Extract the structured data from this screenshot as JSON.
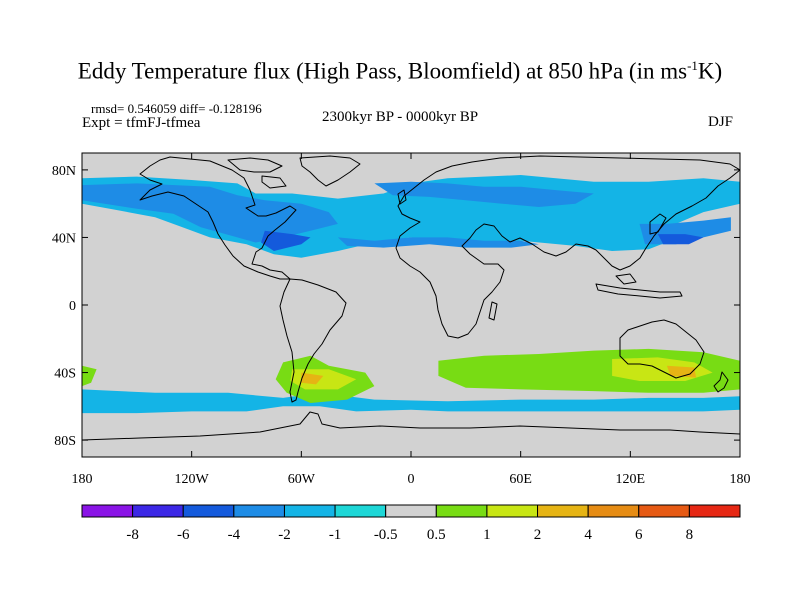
{
  "title": {
    "prefix": "Eddy Temperature flux (High Pass, Bloomfield) at 850 hPa (in ms",
    "superscript": "-1",
    "suffix": "K)"
  },
  "stats": "rmsd= 0.546059 diff= -0.128196",
  "experiment": "Expt = tfmFJ-tfmea",
  "period": "2300kyr BP - 0000kyr BP",
  "season": "DJF",
  "map": {
    "projection": "cylindrical-equidistant",
    "lon_range": [
      -180,
      180
    ],
    "lat_range": [
      -90,
      90
    ],
    "land_color": "#d2d2d2",
    "coastline_color": "#000000",
    "lat_ticks": [
      {
        "value": 80,
        "label": "80N"
      },
      {
        "value": 40,
        "label": "40N"
      },
      {
        "value": 0,
        "label": "0"
      },
      {
        "value": -40,
        "label": "40S"
      },
      {
        "value": -80,
        "label": "80S"
      }
    ],
    "lon_ticks": [
      {
        "value": -180,
        "label": "180"
      },
      {
        "value": -120,
        "label": "120W"
      },
      {
        "value": -60,
        "label": "60W"
      },
      {
        "value": 0,
        "label": "0"
      },
      {
        "value": 60,
        "label": "60E"
      },
      {
        "value": 120,
        "label": "120E"
      },
      {
        "value": 180,
        "label": "180"
      }
    ],
    "anomaly_regions": [
      {
        "level": -1,
        "points": [
          [
            -180,
            75
          ],
          [
            -150,
            76
          ],
          [
            -120,
            74
          ],
          [
            -95,
            72
          ],
          [
            -85,
            66
          ],
          [
            -65,
            66
          ],
          [
            -40,
            63
          ],
          [
            -15,
            66
          ],
          [
            0,
            72
          ],
          [
            20,
            75
          ],
          [
            60,
            77
          ],
          [
            100,
            73
          ],
          [
            130,
            73
          ],
          [
            160,
            75
          ],
          [
            180,
            73
          ],
          [
            180,
            60
          ],
          [
            160,
            55
          ],
          [
            145,
            48
          ],
          [
            142,
            38
          ],
          [
            130,
            33
          ],
          [
            110,
            32
          ],
          [
            90,
            35
          ],
          [
            60,
            38
          ],
          [
            40,
            35
          ],
          [
            20,
            37
          ],
          [
            0,
            40
          ],
          [
            -20,
            37
          ],
          [
            -40,
            32
          ],
          [
            -60,
            28
          ],
          [
            -75,
            30
          ],
          [
            -90,
            36
          ],
          [
            -110,
            40
          ],
          [
            -125,
            46
          ],
          [
            -140,
            52
          ],
          [
            -160,
            56
          ],
          [
            -180,
            60
          ]
        ]
      },
      {
        "level": -2,
        "points": [
          [
            -180,
            71
          ],
          [
            -150,
            72
          ],
          [
            -110,
            70
          ],
          [
            -95,
            65
          ],
          [
            -80,
            62
          ],
          [
            -60,
            60
          ],
          [
            -45,
            55
          ],
          [
            -40,
            48
          ],
          [
            -55,
            44
          ],
          [
            -70,
            40
          ],
          [
            -85,
            37
          ],
          [
            -95,
            40
          ],
          [
            -115,
            46
          ],
          [
            -130,
            54
          ],
          [
            -150,
            57
          ],
          [
            -180,
            62
          ]
        ]
      },
      {
        "level": -2,
        "points": [
          [
            -20,
            72
          ],
          [
            0,
            73
          ],
          [
            20,
            72
          ],
          [
            40,
            70
          ],
          [
            60,
            70
          ],
          [
            80,
            68
          ],
          [
            100,
            66
          ],
          [
            90,
            60
          ],
          [
            70,
            58
          ],
          [
            50,
            60
          ],
          [
            30,
            62
          ],
          [
            10,
            64
          ],
          [
            -10,
            65
          ]
        ]
      },
      {
        "level": -2,
        "points": [
          [
            125,
            48
          ],
          [
            140,
            48
          ],
          [
            160,
            50
          ],
          [
            175,
            52
          ],
          [
            175,
            44
          ],
          [
            160,
            40
          ],
          [
            145,
            36
          ],
          [
            128,
            36
          ]
        ]
      },
      {
        "level": -2,
        "points": [
          [
            -40,
            40
          ],
          [
            -20,
            38
          ],
          [
            0,
            40
          ],
          [
            20,
            40
          ],
          [
            40,
            38
          ],
          [
            60,
            38
          ],
          [
            70,
            36
          ],
          [
            55,
            34
          ],
          [
            30,
            34
          ],
          [
            10,
            36
          ],
          [
            -15,
            34
          ],
          [
            -35,
            35
          ]
        ]
      },
      {
        "level": -4,
        "points": [
          [
            -80,
            44
          ],
          [
            -65,
            42
          ],
          [
            -55,
            40
          ],
          [
            -60,
            36
          ],
          [
            -75,
            32
          ],
          [
            -82,
            37
          ]
        ]
      },
      {
        "level": -4,
        "points": [
          [
            135,
            42
          ],
          [
            150,
            42
          ],
          [
            160,
            40
          ],
          [
            152,
            36
          ],
          [
            138,
            36
          ]
        ]
      },
      {
        "level": -1,
        "points": [
          [
            -180,
            -64
          ],
          [
            -150,
            -64
          ],
          [
            -120,
            -63
          ],
          [
            -90,
            -63
          ],
          [
            -70,
            -60
          ],
          [
            -50,
            -60
          ],
          [
            -30,
            -63
          ],
          [
            0,
            -62
          ],
          [
            20,
            -63
          ],
          [
            60,
            -63
          ],
          [
            90,
            -63
          ],
          [
            120,
            -63
          ],
          [
            160,
            -63
          ],
          [
            180,
            -62
          ],
          [
            180,
            -54
          ],
          [
            160,
            -55
          ],
          [
            130,
            -55
          ],
          [
            100,
            -56
          ],
          [
            60,
            -56
          ],
          [
            20,
            -57
          ],
          [
            -20,
            -56
          ],
          [
            -50,
            -52
          ],
          [
            -70,
            -55
          ],
          [
            -100,
            -52
          ],
          [
            -140,
            -52
          ],
          [
            -180,
            -50
          ]
        ]
      },
      {
        "level": 1,
        "points": [
          [
            -70,
            -34
          ],
          [
            -55,
            -30
          ],
          [
            -45,
            -36
          ],
          [
            -25,
            -40
          ],
          [
            -20,
            -48
          ],
          [
            -35,
            -56
          ],
          [
            -55,
            -58
          ],
          [
            -68,
            -52
          ],
          [
            -74,
            -44
          ]
        ]
      },
      {
        "level": 1,
        "points": [
          [
            15,
            -33
          ],
          [
            40,
            -30
          ],
          [
            70,
            -29
          ],
          [
            100,
            -27
          ],
          [
            130,
            -26
          ],
          [
            160,
            -28
          ],
          [
            180,
            -33
          ],
          [
            180,
            -50
          ],
          [
            160,
            -52
          ],
          [
            130,
            -52
          ],
          [
            100,
            -51
          ],
          [
            60,
            -50
          ],
          [
            30,
            -49
          ],
          [
            15,
            -42
          ]
        ]
      },
      {
        "level": 1,
        "points": [
          [
            -180,
            -36
          ],
          [
            -172,
            -38
          ],
          [
            -175,
            -46
          ],
          [
            -180,
            -48
          ]
        ]
      },
      {
        "level": 2,
        "points": [
          [
            -65,
            -38
          ],
          [
            -45,
            -38
          ],
          [
            -30,
            -44
          ],
          [
            -40,
            -50
          ],
          [
            -58,
            -50
          ],
          [
            -66,
            -45
          ]
        ]
      },
      {
        "level": 2,
        "points": [
          [
            110,
            -32
          ],
          [
            135,
            -31
          ],
          [
            155,
            -34
          ],
          [
            165,
            -40
          ],
          [
            150,
            -45
          ],
          [
            125,
            -45
          ],
          [
            110,
            -42
          ]
        ]
      },
      {
        "level": 4,
        "points": [
          [
            -60,
            -40
          ],
          [
            -48,
            -42
          ],
          [
            -52,
            -47
          ],
          [
            -60,
            -46
          ]
        ]
      },
      {
        "level": 4,
        "points": [
          [
            140,
            -36
          ],
          [
            155,
            -37
          ],
          [
            156,
            -43
          ],
          [
            142,
            -42
          ]
        ]
      }
    ]
  },
  "colorbar": {
    "labels": [
      "-8",
      "-6",
      "-4",
      "-2",
      "-1",
      "-0.5",
      "0.5",
      "1",
      "2",
      "4",
      "6",
      "8"
    ],
    "colors": [
      "#8a14e6",
      "#3c28e6",
      "#145adc",
      "#1e8ce6",
      "#14b4e6",
      "#1ed7d7",
      "#d2d2d2",
      "#78dc14",
      "#c8e614",
      "#e6b414",
      "#e68c14",
      "#e65a14",
      "#e62814"
    ]
  }
}
